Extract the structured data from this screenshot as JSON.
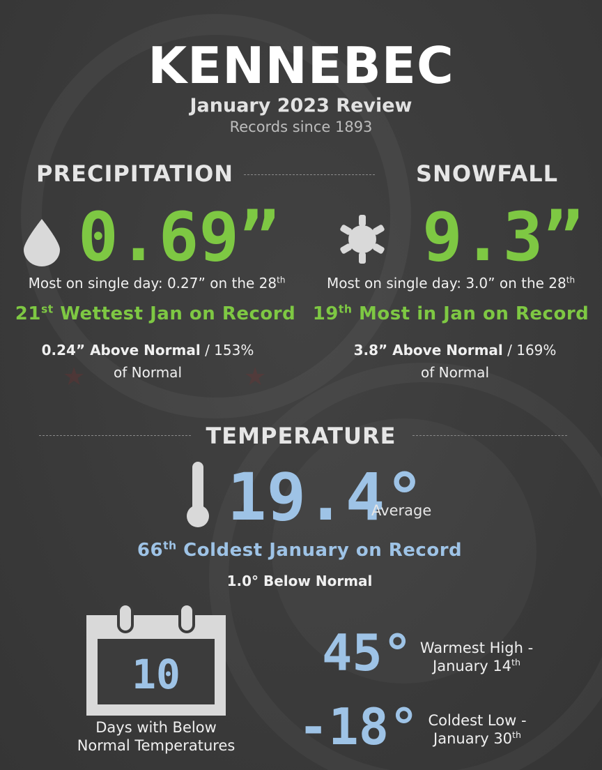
{
  "header": {
    "title": "KENNEBEC",
    "subtitle": "January 2023 Review",
    "records": "Records since 1893"
  },
  "precipitation": {
    "heading": "PRECIPITATION",
    "icon": "raindrop-icon",
    "value": "0.69”",
    "single_day_prefix": "Most on single day: 0.27” on the 28",
    "single_day_suffix": "th",
    "rank_number": "21",
    "rank_suffix": "st",
    "rank_text": " Wettest Jan on Record",
    "above_normal": "0.24” Above Normal",
    "percent_normal": " / 153%",
    "of_normal": "of Normal"
  },
  "snowfall": {
    "heading": "SNOWFALL",
    "icon": "snowflake-icon",
    "value": "9.3”",
    "single_day_prefix": "Most on single day: 3.0” on the 28",
    "single_day_suffix": "th",
    "rank_number": "19",
    "rank_suffix": "th",
    "rank_text": " Most in Jan on Record",
    "above_normal": "3.8” Above Normal",
    "percent_normal": " / 169%",
    "of_normal": "of Normal"
  },
  "temperature": {
    "heading": "TEMPERATURE",
    "icon": "thermometer-icon",
    "value": "19.4°",
    "value_label": "Average",
    "rank_number": "66",
    "rank_suffix": "th",
    "rank_text": " Coldest January on Record",
    "below_normal": "1.0° Below Normal",
    "days_icon": "calendar-icon",
    "days_below_normal": "10",
    "days_label_line1": "Days with Below",
    "days_label_line2": "Normal Temperatures",
    "warmest_value": "45°",
    "warmest_label_line1": "Warmest High -",
    "warmest_label_line2_prefix": "January 14",
    "warmest_label_line2_suffix": "th",
    "coldest_value": "-18°",
    "coldest_label_line1": "Coldest Low -",
    "coldest_label_line2_prefix": "January 30",
    "coldest_label_line2_suffix": "th"
  },
  "colors": {
    "background": "#3c3c3c",
    "precip_accent": "#7ec843",
    "temp_accent": "#9ec3e6",
    "icon_grey": "#d9d9d9"
  }
}
